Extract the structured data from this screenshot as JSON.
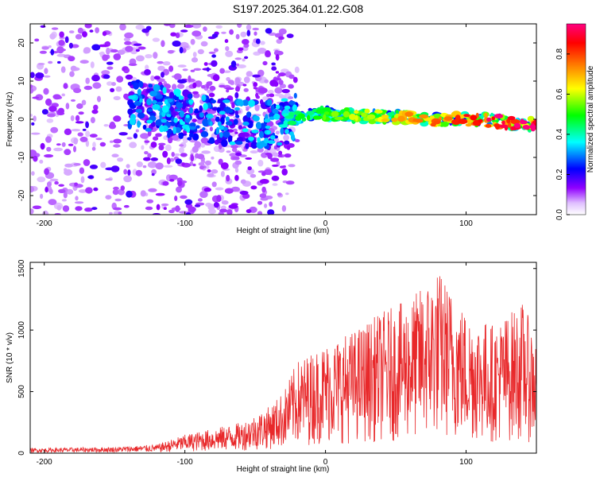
{
  "title": "S197.2025.364.01.22.G08",
  "chart_data": [
    {
      "type": "heatmap",
      "xlabel": "Height of straight line (km)",
      "ylabel": "Frequency (Hz)",
      "xlim": [
        -210,
        150
      ],
      "ylim": [
        -25,
        25
      ],
      "xticks": [
        -200,
        -100,
        0,
        100
      ],
      "yticks": [
        20,
        10,
        0,
        -10,
        -20
      ],
      "colorbar": {
        "label": "Normalized spectral amplitude",
        "range": [
          0,
          0.95
        ],
        "ticks": [
          "0.0",
          "0.2",
          "0.4",
          "0.6",
          "0.8"
        ],
        "colors": [
          "#ffffff",
          "#e0c0ff",
          "#9000ff",
          "#0000ff",
          "#00ffff",
          "#00ff00",
          "#ffff00",
          "#ff8000",
          "#ff0000",
          "#ff0080"
        ]
      },
      "ridge": {
        "description_free": true,
        "points": [
          [
            -210,
            8
          ],
          [
            -180,
            5
          ],
          [
            -150,
            5
          ],
          [
            -125,
            3
          ],
          [
            -100,
            1
          ],
          [
            -80,
            0
          ],
          [
            -60,
            -1
          ],
          [
            -40,
            -1.5
          ],
          [
            -25,
            0
          ],
          [
            -10,
            1.5
          ],
          [
            0,
            1.5
          ],
          [
            20,
            1
          ],
          [
            50,
            0.5
          ],
          [
            80,
            0
          ],
          [
            110,
            0
          ],
          [
            130,
            -1
          ],
          [
            150,
            -1.5
          ]
        ]
      }
    },
    {
      "type": "line",
      "xlabel": "Height of straight line (km)",
      "ylabel": "SNR (10 * v/v)",
      "xlim": [
        -210,
        150
      ],
      "ylim": [
        0,
        1550
      ],
      "xticks": [
        -200,
        -100,
        0,
        100
      ],
      "yticks": [
        0,
        500,
        1000,
        1500
      ],
      "color": "#e8282a",
      "envelope": [
        [
          -210,
          40
        ],
        [
          -150,
          50
        ],
        [
          -120,
          70
        ],
        [
          -100,
          150
        ],
        [
          -80,
          200
        ],
        [
          -60,
          250
        ],
        [
          -40,
          380
        ],
        [
          -30,
          500
        ],
        [
          -20,
          750
        ],
        [
          -10,
          820
        ],
        [
          0,
          900
        ],
        [
          20,
          1000
        ],
        [
          40,
          1150
        ],
        [
          60,
          1250
        ],
        [
          80,
          1500
        ],
        [
          100,
          1150
        ],
        [
          120,
          1050
        ],
        [
          140,
          1230
        ],
        [
          150,
          950
        ]
      ]
    }
  ]
}
